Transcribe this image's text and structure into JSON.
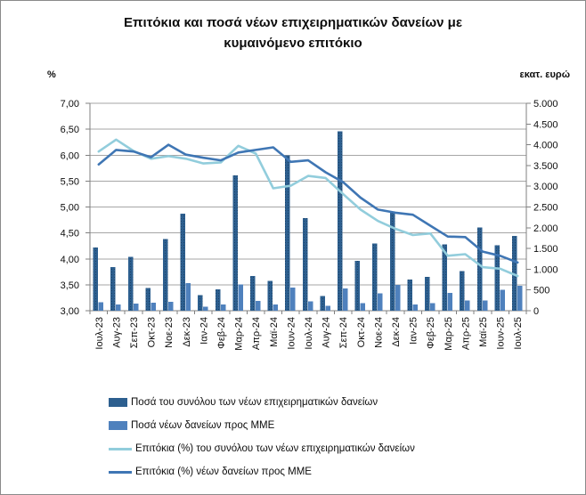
{
  "title": "Επιτόκια και ποσά νέων επιχειρηματικών δανείων με κυμαινόμενο επιτόκιο",
  "axis_units": {
    "left": "%",
    "right": "εκατ. ευρώ"
  },
  "colors": {
    "background": "#FFFFFF",
    "border": "#8A8A8A",
    "gridline": "#A6A6A6",
    "axis": "#808080",
    "text": "#0D0D0D",
    "bar_total": "#2D5F8F",
    "bar_total_dot": "#1E4468",
    "bar_sme": "#4F81BD",
    "line_total": "#92CDDC",
    "line_sme": "#3F76B4"
  },
  "chart_data": {
    "type": "bar",
    "subtype": "combo-bar-line-dual-axis",
    "title": "Επιτόκια και ποσά νέων επιχειρηματικών δανείων με κυμαινόμενο επιτόκιο",
    "grid": true,
    "legend_position": "bottom-left",
    "categories": [
      "Ιουλ-23",
      "Αυγ-23",
      "Σεπ-23",
      "Οκτ-23",
      "Νοε-23",
      "Δεκ-23",
      "Ιαν-24",
      "Φεβ-24",
      "Μαρ-24",
      "Απρ-24",
      "Μαϊ-24",
      "Ιουν-24",
      "Ιουλ-24",
      "Αυγ-24",
      "Σεπ-24",
      "Οκτ-24",
      "Νοε-24",
      "Δεκ-24",
      "Ιαν-25",
      "Φεβ-25",
      "Μαρ-25",
      "Απρ-25",
      "Μαϊ-25",
      "Ιουν-25",
      "Ιουλ-25"
    ],
    "left_axis": {
      "label": "%",
      "min": 3.0,
      "max": 7.0,
      "step": 0.5,
      "ticks": [
        "7,00",
        "6,50",
        "6,00",
        "5,50",
        "5,00",
        "4,50",
        "4,00",
        "3,50",
        "3,00"
      ]
    },
    "right_axis": {
      "label": "εκατ. ευρώ",
      "min": 0,
      "max": 5000,
      "step": 500,
      "ticks": [
        "5.000",
        "4.500",
        "4.000",
        "3.500",
        "3.000",
        "2.500",
        "2.000",
        "1.500",
        "1.000",
        "500",
        "0"
      ]
    },
    "series": [
      {
        "name": "Ποσά του συνόλου των νέων επιχειρηματικών δανείων",
        "type": "bar",
        "axis": "right",
        "color": "#2D5F8F",
        "values": [
          1520,
          1050,
          1295,
          545,
          1725,
          2340,
          375,
          520,
          3265,
          840,
          720,
          3740,
          2235,
          355,
          4320,
          1200,
          1615,
          2365,
          750,
          820,
          1595,
          950,
          2005,
          1580,
          1805
        ]
      },
      {
        "name": "Ποσά νέων δανείων προς ΜΜΕ",
        "type": "bar",
        "axis": "right",
        "color": "#4F81BD",
        "values": [
          200,
          150,
          170,
          190,
          215,
          670,
          100,
          150,
          630,
          235,
          150,
          555,
          220,
          120,
          535,
          185,
          420,
          620,
          145,
          180,
          430,
          245,
          250,
          500,
          605
        ]
      },
      {
        "name": "Επιτόκια (%) του συνόλου των νέων επιχειρηματικών δανείων",
        "type": "line",
        "axis": "left",
        "color": "#92CDDC",
        "values": [
          6.07,
          6.3,
          6.08,
          5.93,
          5.98,
          5.93,
          5.84,
          5.86,
          6.18,
          6.03,
          5.36,
          5.41,
          5.6,
          5.56,
          5.25,
          4.95,
          4.73,
          4.58,
          4.46,
          4.49,
          4.06,
          4.09,
          3.84,
          3.81,
          3.67
        ]
      },
      {
        "name": "Επιτόκια (%) νέων δανείων προς ΜΜΕ",
        "type": "line",
        "axis": "left",
        "color": "#3F76B4",
        "values": [
          5.82,
          6.1,
          6.07,
          5.96,
          6.2,
          6.01,
          5.95,
          5.9,
          6.05,
          6.1,
          6.15,
          5.87,
          5.9,
          5.67,
          5.48,
          5.18,
          4.95,
          4.89,
          4.85,
          4.64,
          4.43,
          4.42,
          4.14,
          4.06,
          3.93
        ]
      }
    ]
  }
}
